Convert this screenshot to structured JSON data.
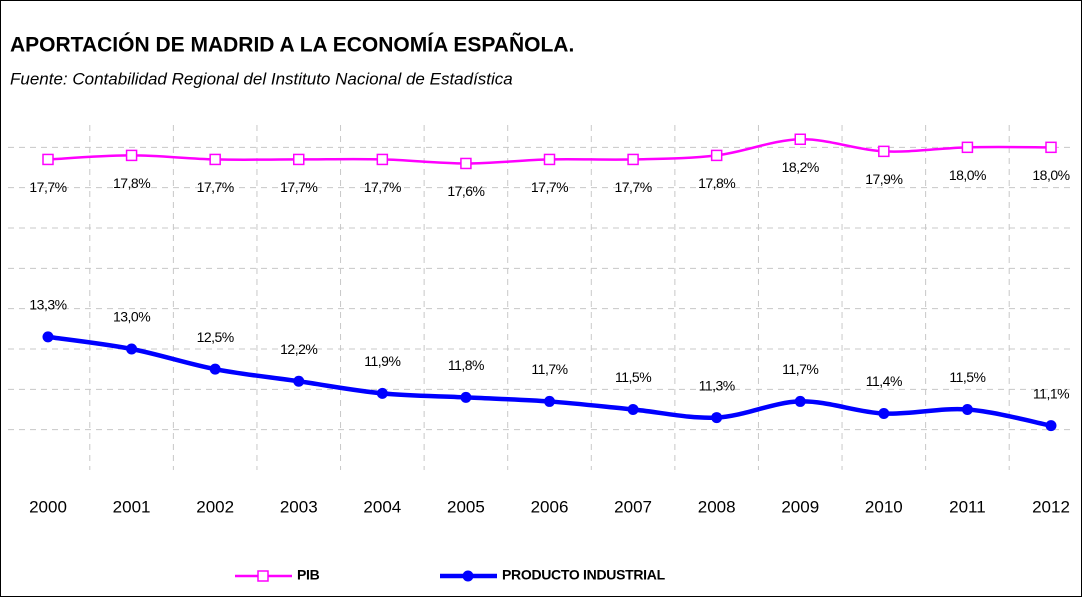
{
  "chart_data": {
    "type": "line",
    "title": "APORTACIÓN DE MADRID A LA ECONOMÍA ESPAÑOLA.",
    "subtitle": "Fuente: Contabilidad Regional del Instituto Nacional de Estadística",
    "categories": [
      "2000",
      "2001",
      "2002",
      "2003",
      "2004",
      "2005",
      "2006",
      "2007",
      "2008",
      "2009",
      "2010",
      "2011",
      "2012"
    ],
    "series": [
      {
        "name": "PIB",
        "color": "#ff00ff",
        "marker": "square",
        "values": [
          17.7,
          17.8,
          17.7,
          17.7,
          17.7,
          17.6,
          17.7,
          17.7,
          17.8,
          18.2,
          17.9,
          18.0,
          18.0
        ],
        "value_labels": [
          "17,7%",
          "17,8%",
          "17,7%",
          "17,7%",
          "17,7%",
          "17,6%",
          "17,7%",
          "17,7%",
          "17,8%",
          "18,2%",
          "17,9%",
          "18,0%",
          "18,0%"
        ]
      },
      {
        "name": "PRODUCTO INDUSTRIAL",
        "color": "#0000ff",
        "marker": "circle",
        "values": [
          13.3,
          13.0,
          12.5,
          12.2,
          11.9,
          11.8,
          11.7,
          11.5,
          11.3,
          11.7,
          11.4,
          11.5,
          11.1
        ],
        "value_labels": [
          "13,3%",
          "13,0%",
          "12,5%",
          "12,2%",
          "11,9%",
          "11,8%",
          "11,7%",
          "11,5%",
          "11,3%",
          "11,7%",
          "11,4%",
          "11,5%",
          "11,1%"
        ]
      }
    ],
    "ylim": [
      10,
      19
    ],
    "yticks": [
      11,
      12,
      13,
      14,
      15,
      16,
      17,
      18
    ],
    "grid": true,
    "legend": "bottom"
  }
}
